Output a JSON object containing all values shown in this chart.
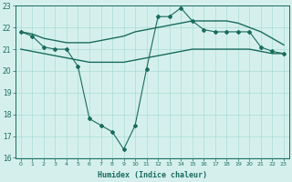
{
  "xlabel": "Humidex (Indice chaleur)",
  "bg_color": "#d5f0ec",
  "grid_color": "#aaddd6",
  "line_color": "#1a6b5e",
  "xlim": [
    -0.5,
    23.5
  ],
  "ylim": [
    16,
    23
  ],
  "yticks": [
    16,
    17,
    18,
    19,
    20,
    21,
    22,
    23
  ],
  "xticks": [
    0,
    1,
    2,
    3,
    4,
    5,
    6,
    7,
    8,
    9,
    10,
    11,
    12,
    13,
    14,
    15,
    16,
    17,
    18,
    19,
    20,
    21,
    22,
    23
  ],
  "series": [
    {
      "x": [
        0,
        1,
        2,
        3,
        4,
        5,
        6,
        7,
        8,
        9,
        10,
        11,
        12,
        13,
        14,
        15,
        16,
        17,
        18,
        19,
        20,
        21,
        22,
        23
      ],
      "y": [
        21.8,
        21.6,
        21.1,
        21.0,
        21.0,
        20.2,
        17.8,
        17.5,
        17.2,
        16.4,
        17.5,
        20.1,
        22.5,
        22.5,
        22.9,
        22.3,
        21.9,
        21.8,
        21.8,
        21.8,
        21.8,
        21.1,
        20.9,
        20.8
      ],
      "marker": "D",
      "markersize": 2.0,
      "linewidth": 0.8
    },
    {
      "x": [
        0,
        1,
        2,
        3,
        4,
        5,
        6,
        7,
        8,
        9,
        10,
        11,
        12,
        13,
        14,
        15,
        16,
        17,
        18,
        19,
        20,
        21,
        22,
        23
      ],
      "y": [
        21.8,
        21.7,
        21.5,
        21.4,
        21.3,
        21.3,
        21.3,
        21.4,
        21.5,
        21.6,
        21.8,
        21.9,
        22.0,
        22.1,
        22.2,
        22.3,
        22.3,
        22.3,
        22.3,
        22.2,
        22.0,
        21.8,
        21.5,
        21.2
      ],
      "marker": null,
      "linewidth": 1.0
    },
    {
      "x": [
        0,
        1,
        2,
        3,
        4,
        5,
        6,
        7,
        8,
        9,
        10,
        11,
        12,
        13,
        14,
        15,
        16,
        17,
        18,
        19,
        20,
        21,
        22,
        23
      ],
      "y": [
        21.0,
        20.9,
        20.8,
        20.7,
        20.6,
        20.5,
        20.4,
        20.4,
        20.4,
        20.4,
        20.5,
        20.6,
        20.7,
        20.8,
        20.9,
        21.0,
        21.0,
        21.0,
        21.0,
        21.0,
        21.0,
        20.9,
        20.8,
        20.8
      ],
      "marker": null,
      "linewidth": 1.0
    }
  ]
}
